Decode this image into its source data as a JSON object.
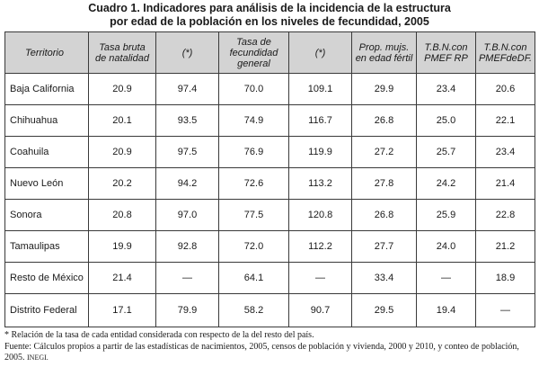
{
  "title_line1": "Cuadro 1. Indicadores para análisis de la incidencia de la estructura",
  "title_line2": "por edad de la población en los niveles de fecundidad, 2005",
  "columns": [
    [
      "Territorio"
    ],
    [
      "Tasa bruta",
      "de natalidad"
    ],
    [
      "(*)"
    ],
    [
      "Tasa de",
      "fecundidad",
      "general"
    ],
    [
      "(*)"
    ],
    [
      "Prop. mujs.",
      "en edad fértil"
    ],
    [
      "T.B.N.con",
      "PMEF RP"
    ],
    [
      "T.B.N.con",
      "PMEFdeDF."
    ]
  ],
  "rows": [
    [
      "Baja California",
      "20.9",
      "97.4",
      "70.0",
      "109.1",
      "29.9",
      "23.4",
      "20.6"
    ],
    [
      "Chihuahua",
      "20.1",
      "93.5",
      "74.9",
      "116.7",
      "26.8",
      "25.0",
      "22.1"
    ],
    [
      "Coahuila",
      "20.9",
      "97.5",
      "76.9",
      "119.9",
      "27.2",
      "25.7",
      "23.4"
    ],
    [
      "Nuevo León",
      "20.2",
      "94.2",
      "72.6",
      "113.2",
      "27.8",
      "24.2",
      "21.4"
    ],
    [
      "Sonora",
      "20.8",
      "97.0",
      "77.5",
      "120.8",
      "26.8",
      "25.9",
      "22.8"
    ],
    [
      "Tamaulipas",
      "19.9",
      "92.8",
      "72.0",
      "112.2",
      "27.7",
      "24.0",
      "21.2"
    ],
    [
      "Resto de México",
      "21.4",
      "—",
      "64.1",
      "—",
      "33.4",
      "—",
      "18.9"
    ],
    [
      "Distrito Federal",
      "17.1",
      "79.9",
      "58.2",
      "90.7",
      "29.5",
      "19.4",
      "—"
    ]
  ],
  "footnote": "* Relación de la tasa de cada entidad considerada con respecto de la del resto del país.",
  "source": "Fuente: Cálculos propios a partir de las estadísticas de nacimientos, 2005, censos de población y vivienda, 2000 y 2010, y conteo de población, 2005.",
  "source_org": "INEGI."
}
